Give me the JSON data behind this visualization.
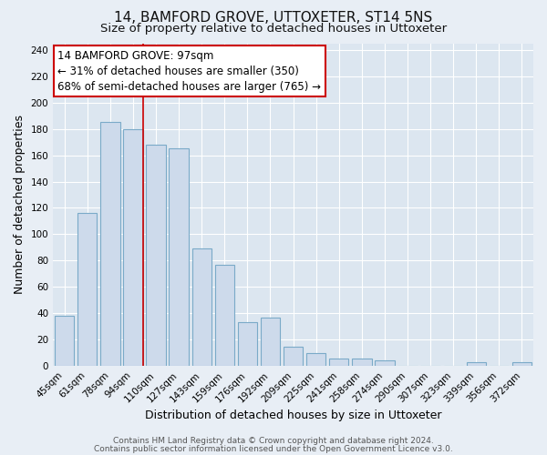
{
  "title": "14, BAMFORD GROVE, UTTOXETER, ST14 5NS",
  "subtitle": "Size of property relative to detached houses in Uttoxeter",
  "xlabel": "Distribution of detached houses by size in Uttoxeter",
  "ylabel": "Number of detached properties",
  "footer_line1": "Contains HM Land Registry data © Crown copyright and database right 2024.",
  "footer_line2": "Contains public sector information licensed under the Open Government Licence v3.0.",
  "bar_labels": [
    "45sqm",
    "61sqm",
    "78sqm",
    "94sqm",
    "110sqm",
    "127sqm",
    "143sqm",
    "159sqm",
    "176sqm",
    "192sqm",
    "209sqm",
    "225sqm",
    "241sqm",
    "258sqm",
    "274sqm",
    "290sqm",
    "307sqm",
    "323sqm",
    "339sqm",
    "356sqm",
    "372sqm"
  ],
  "bar_values": [
    38,
    116,
    185,
    180,
    168,
    165,
    89,
    77,
    33,
    37,
    15,
    10,
    6,
    6,
    4,
    0,
    0,
    0,
    3,
    0,
    3
  ],
  "bar_color": "#cddaeb",
  "bar_edge_color": "#7aaac8",
  "annotation_title": "14 BAMFORD GROVE: 97sqm",
  "annotation_line1": "← 31% of detached houses are smaller (350)",
  "annotation_line2": "68% of semi-detached houses are larger (765) →",
  "vline_bar_index": 3,
  "vline_color": "#cc0000",
  "annotation_box_edge_color": "#cc0000",
  "ylim": [
    0,
    245
  ],
  "background_color": "#e8eef5",
  "plot_background_color": "#dce6f0",
  "title_fontsize": 11,
  "subtitle_fontsize": 9.5,
  "axis_label_fontsize": 9,
  "tick_fontsize": 7.5,
  "annotation_fontsize": 8.5,
  "footer_fontsize": 6.5
}
